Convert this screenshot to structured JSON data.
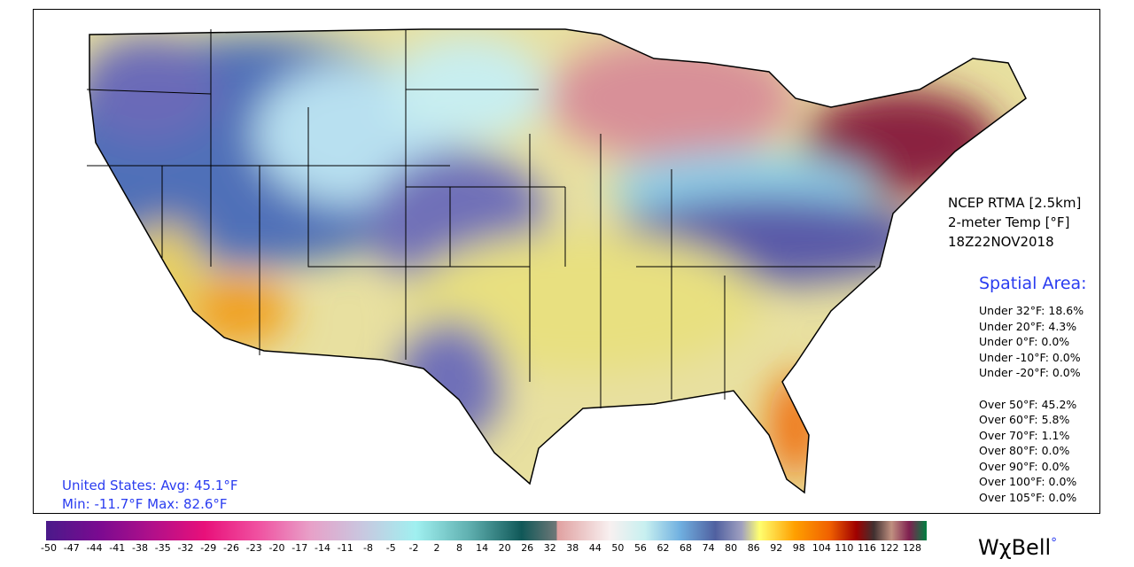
{
  "header": {
    "line1": "NCEP RTMA [2.5km]",
    "line2": "2-meter Temp [°F]",
    "line3": "18Z22NOV2018"
  },
  "spatial": {
    "heading": "Spatial Area:",
    "under": [
      "Under 32°F: 18.6%",
      "Under 20°F: 4.3%",
      "Under 0°F: 0.0%",
      "Under -10°F: 0.0%",
      "Under -20°F: 0.0%"
    ],
    "over": [
      "Over 50°F: 45.2%",
      "Over 60°F: 5.8%",
      "Over 70°F: 1.1%",
      "Over 80°F: 0.0%",
      "Over 90°F: 0.0%",
      "Over 100°F: 0.0%",
      "Over 105°F: 0.0%"
    ]
  },
  "summary": {
    "line1": "United States: Avg:  45.1°F",
    "line2": "Min: -11.7°F Max:  82.6°F"
  },
  "colorbar": {
    "labels": [
      "-50",
      "-47",
      "-44",
      "-41",
      "-38",
      "-35",
      "-32",
      "-29",
      "-26",
      "-23",
      "-20",
      "-17",
      "-14",
      "-11",
      "-8",
      "-5",
      "-2",
      "2",
      "8",
      "14",
      "20",
      "26",
      "32",
      "38",
      "44",
      "50",
      "56",
      "62",
      "68",
      "74",
      "80",
      "86",
      "92",
      "98",
      "104",
      "110",
      "116",
      "122",
      "128"
    ]
  },
  "logo": {
    "text": "WχBell",
    "mark": "°"
  }
}
